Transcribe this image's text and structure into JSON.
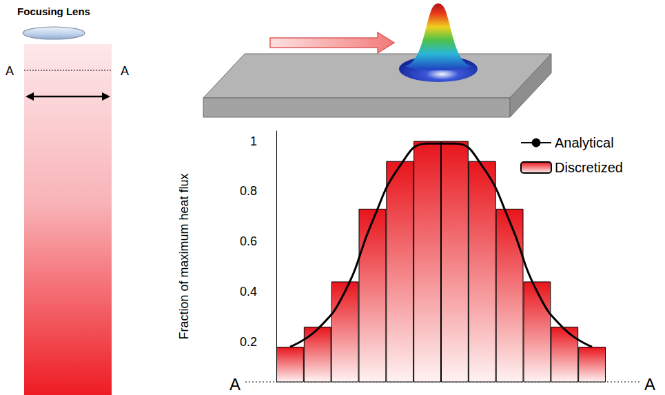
{
  "diagram": {
    "lens_label": "Focusing Lens",
    "section_labels": [
      "A",
      "A"
    ]
  },
  "chart_data": {
    "type": "bar",
    "ylabel": "Fraction of maximum heat flux",
    "categories": [
      null,
      null,
      null,
      null,
      null,
      null,
      null,
      null,
      null,
      null,
      null,
      null
    ],
    "series": [
      {
        "name": "Analytical",
        "type": "line",
        "color": "#000000",
        "line_style": "solid",
        "values": [
          0.18,
          0.25,
          0.4,
          0.68,
          0.9,
          0.99,
          0.99,
          0.9,
          0.68,
          0.4,
          0.25,
          0.18
        ]
      },
      {
        "name": "Discretized",
        "type": "bar",
        "color": "#e8141b",
        "values": [
          0.18,
          0.26,
          0.44,
          0.73,
          0.92,
          1.0,
          1.0,
          0.92,
          0.73,
          0.44,
          0.26,
          0.18
        ]
      }
    ],
    "ylim": [
      0.04,
      1.04
    ],
    "yticks": [
      0.2,
      0.4,
      0.6,
      0.8,
      1
    ],
    "grid": false,
    "legend": "upper right",
    "annotations": [
      "A",
      "A"
    ]
  }
}
